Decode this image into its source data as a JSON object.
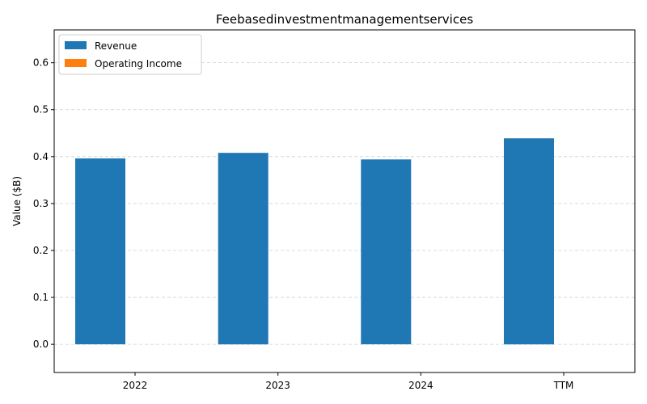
{
  "chart_data": {
    "type": "bar",
    "title": "Feebasedinvestmentmanagementservices",
    "xlabel": "",
    "ylabel": "Value ($B)",
    "categories": [
      "2022",
      "2023",
      "2024",
      "TTM"
    ],
    "series": [
      {
        "name": "Revenue",
        "color": "#1f77b4",
        "values": [
          0.396,
          0.408,
          0.394,
          0.439
        ]
      },
      {
        "name": "Operating Income",
        "color": "#ff7f0e",
        "values": [
          0,
          0,
          0,
          0
        ]
      }
    ],
    "ylim": [
      -0.06,
      0.67
    ],
    "yticks": [
      "0.0",
      "0.1",
      "0.2",
      "0.3",
      "0.4",
      "0.5",
      "0.6"
    ],
    "grid": true,
    "legend_position": "top-left"
  }
}
